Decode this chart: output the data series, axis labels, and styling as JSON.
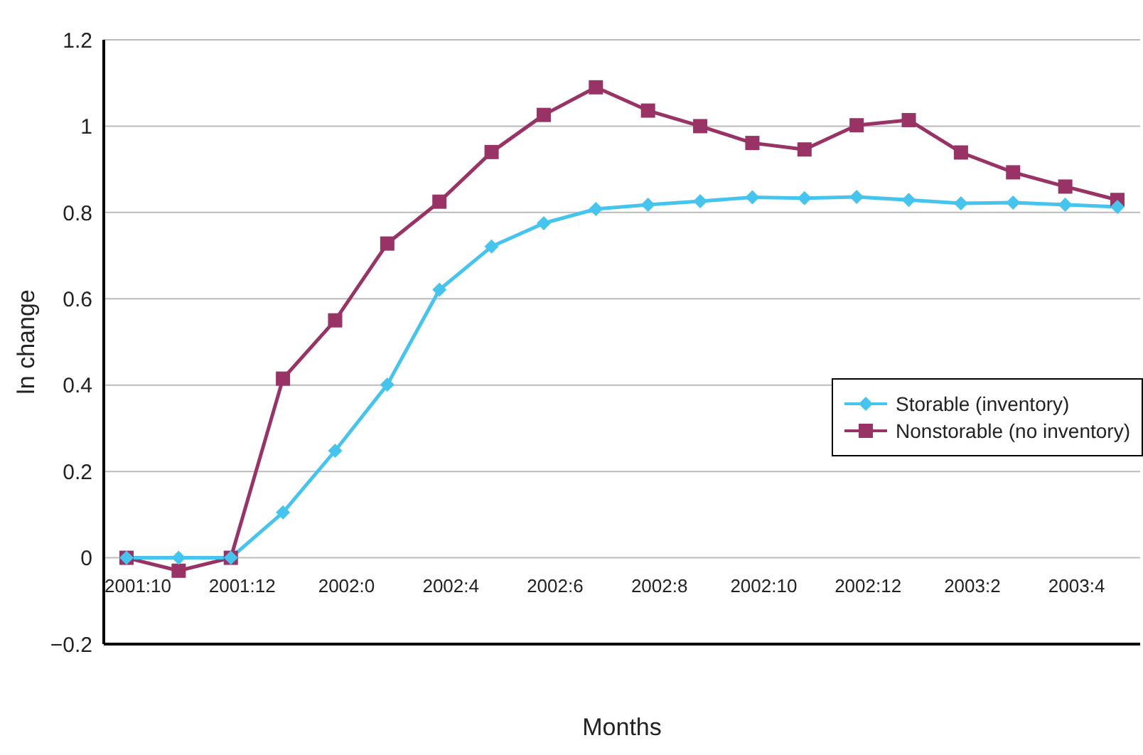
{
  "chart_data": {
    "type": "line",
    "xlabel": "Months",
    "ylabel": "ln change",
    "categories": [
      "2001:10",
      null,
      "2001:12",
      null,
      "2002:0",
      null,
      "2002:4",
      null,
      "2002:6",
      null,
      "2002:8",
      null,
      "2002:10",
      null,
      "2002:12",
      null,
      "2003:2",
      null,
      "2003:4",
      null
    ],
    "series": [
      {
        "name": "Storable (inventory)",
        "color": "#45c5ee",
        "marker": "diamond",
        "values": [
          0,
          0,
          0,
          0.105,
          0.248,
          0.401,
          0.621,
          0.721,
          0.775,
          0.808,
          0.818,
          0.826,
          0.835,
          0.833,
          0.836,
          0.829,
          0.821,
          0.823,
          0.818,
          0.813
        ]
      },
      {
        "name": "Nonstorable (no inventory)",
        "color": "#993366",
        "marker": "square",
        "values": [
          0,
          -0.03,
          0,
          0.415,
          0.55,
          0.728,
          0.825,
          0.94,
          1.026,
          1.09,
          1.036,
          1.0,
          0.961,
          0.946,
          1.002,
          1.014,
          0.939,
          0.893,
          0.86,
          0.829
        ]
      }
    ],
    "ylim": [
      -0.2,
      1.2
    ],
    "yticks": [
      {
        "value": -0.2,
        "label": "−0.2"
      },
      0,
      0.2,
      0.4,
      0.6,
      0.8,
      1,
      1.2
    ],
    "grid": "y",
    "legend": "right"
  }
}
